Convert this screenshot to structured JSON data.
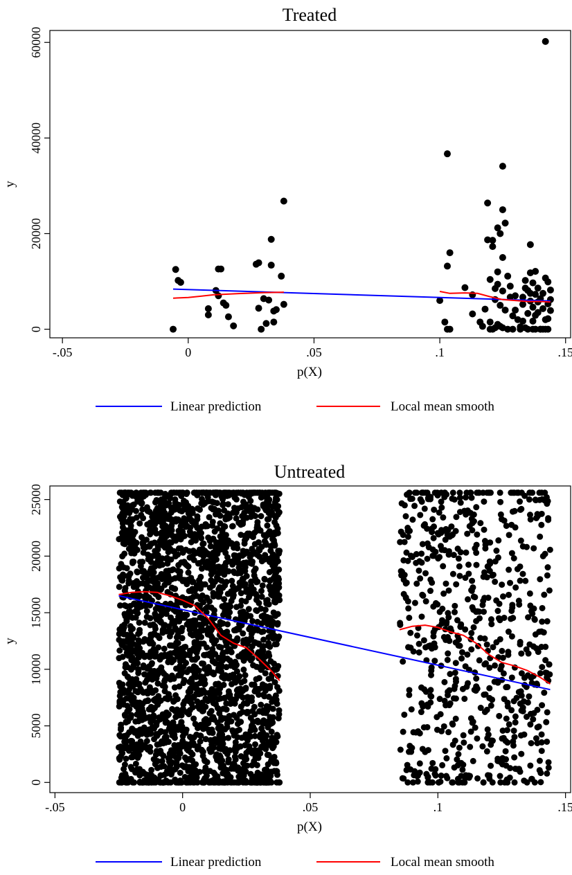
{
  "chart_data": [
    {
      "type": "scatter",
      "title": "Treated",
      "xlabel": "p(X)",
      "ylabel": "y",
      "xlim": [
        -0.055,
        0.152
      ],
      "ylim": [
        -1800,
        62500
      ],
      "xticks": [
        -0.05,
        0,
        0.05,
        0.1,
        0.15
      ],
      "xtick_labels": [
        "-.05",
        "0",
        ".05",
        ".1",
        ".15"
      ],
      "yticks": [
        0,
        20000,
        40000,
        60000
      ],
      "ytick_labels": [
        "0",
        "20000",
        "40000",
        "60000"
      ],
      "grid": false,
      "legend": {
        "position": "bottom",
        "entries": [
          "Linear prediction",
          "Local mean smooth"
        ]
      },
      "colors": {
        "points": "#000000",
        "linear": "#0000ff",
        "smooth": "#ff0000"
      },
      "series": [
        {
          "kind": "points",
          "x": [
            -0.006,
            -0.005,
            -0.004,
            -0.003,
            0.008,
            0.008,
            0.011,
            0.012,
            0.012,
            0.013,
            0.014,
            0.015,
            0.016,
            0.018,
            0.027,
            0.028,
            0.028,
            0.029,
            0.03,
            0.031,
            0.032,
            0.033,
            0.033,
            0.034,
            0.034,
            0.035,
            0.037,
            0.038,
            0.038,
            0.1,
            0.102,
            0.103,
            0.103,
            0.103,
            0.104,
            0.104,
            0.11,
            0.113,
            0.113,
            0.116,
            0.117,
            0.118,
            0.119,
            0.119,
            0.12,
            0.12,
            0.12,
            0.121,
            0.121,
            0.121,
            0.122,
            0.122,
            0.122,
            0.123,
            0.123,
            0.123,
            0.123,
            0.124,
            0.124,
            0.124,
            0.125,
            0.125,
            0.125,
            0.125,
            0.125,
            0.126,
            0.126,
            0.127,
            0.127,
            0.128,
            0.128,
            0.129,
            0.129,
            0.13,
            0.13,
            0.131,
            0.132,
            0.132,
            0.133,
            0.133,
            0.133,
            0.134,
            0.134,
            0.134,
            0.135,
            0.135,
            0.135,
            0.136,
            0.136,
            0.136,
            0.136,
            0.137,
            0.137,
            0.137,
            0.137,
            0.138,
            0.138,
            0.138,
            0.138,
            0.139,
            0.139,
            0.139,
            0.14,
            0.14,
            0.14,
            0.141,
            0.141,
            0.141,
            0.142,
            0.142,
            0.142,
            0.142,
            0.143,
            0.143,
            0.143,
            0.143,
            0.144,
            0.144,
            0.144
          ],
          "y": [
            0,
            12500,
            10200,
            9800,
            4300,
            3000,
            8100,
            12600,
            7000,
            12600,
            5500,
            5000,
            2600,
            700,
            13600,
            13900,
            4400,
            0,
            6400,
            1200,
            6100,
            18800,
            13400,
            3800,
            1500,
            4100,
            11100,
            26800,
            5200,
            6000,
            1500,
            13200,
            36700,
            0,
            16000,
            0,
            8700,
            7200,
            3200,
            1500,
            600,
            4200,
            18700,
            26400,
            10400,
            1500,
            0,
            17300,
            18600,
            0,
            8500,
            6200,
            300,
            9400,
            12000,
            21200,
            1000,
            600,
            20000,
            5000,
            34100,
            25000,
            15000,
            8000,
            300,
            22200,
            4000,
            11100,
            0,
            9000,
            6700,
            2800,
            0,
            4000,
            7000,
            2000,
            500,
            0,
            5200,
            1700,
            6700,
            10200,
            8600,
            300,
            8100,
            3300,
            0,
            17700,
            11800,
            7500,
            5900,
            4600,
            0,
            9700,
            1700,
            12100,
            7300,
            2900,
            0,
            5700,
            3500,
            8600,
            6400,
            0,
            0,
            7500,
            4300,
            0,
            10700,
            2000,
            0,
            60200,
            9900,
            5300,
            2200,
            0,
            8200,
            3900,
            6200
          ]
        },
        {
          "kind": "line",
          "name": "Linear prediction",
          "x": [
            -0.006,
            0.144
          ],
          "y": [
            8400,
            5900
          ]
        },
        {
          "kind": "line",
          "name": "Local mean smooth",
          "x": [
            -0.006,
            0.0,
            0.005,
            0.01,
            0.02,
            0.03,
            0.038
          ],
          "y": [
            6500,
            6650,
            6900,
            7200,
            7450,
            7650,
            7750
          ]
        },
        {
          "kind": "line",
          "name": "Local mean smooth",
          "x": [
            0.1,
            0.104,
            0.11,
            0.115,
            0.12,
            0.125,
            0.13,
            0.135,
            0.14,
            0.144
          ],
          "y": [
            7900,
            7500,
            7600,
            7500,
            6800,
            6200,
            6000,
            5800,
            5800,
            5700
          ]
        }
      ]
    },
    {
      "type": "scatter",
      "title": "Untreated",
      "xlabel": "p(X)",
      "ylabel": "y",
      "xlim": [
        -0.052,
        0.152
      ],
      "ylim": [
        -900,
        26200
      ],
      "xticks": [
        -0.05,
        0,
        0.05,
        0.1,
        0.15
      ],
      "xtick_labels": [
        "-.05",
        "0",
        ".05",
        ".1",
        ".15"
      ],
      "yticks": [
        0,
        5000,
        10000,
        15000,
        20000,
        25000
      ],
      "ytick_labels": [
        "0",
        "5000",
        "10000",
        "15000",
        "20000",
        "25000"
      ],
      "grid": false,
      "legend": {
        "position": "bottom",
        "entries": [
          "Linear prediction",
          "Local mean smooth"
        ]
      },
      "colors": {
        "points": "#000000",
        "linear": "#0000ff",
        "smooth": "#ff0000"
      },
      "point_clusters": [
        {
          "x_range": [
            -0.025,
            0.038
          ],
          "y_range": [
            0,
            25600
          ],
          "density": "very dense"
        },
        {
          "x_range": [
            0.085,
            0.144
          ],
          "y_range": [
            0,
            25600
          ],
          "density": "moderate"
        }
      ],
      "series": [
        {
          "kind": "line",
          "name": "Linear prediction",
          "x": [
            -0.025,
            0.144
          ],
          "y": [
            16500,
            8200
          ]
        },
        {
          "kind": "line",
          "name": "Local mean smooth",
          "x": [
            -0.025,
            -0.02,
            -0.015,
            -0.01,
            -0.005,
            0.0,
            0.005,
            0.01,
            0.015,
            0.02,
            0.025,
            0.03,
            0.035,
            0.038
          ],
          "y": [
            16600,
            16800,
            16850,
            16800,
            16500,
            16100,
            15600,
            14500,
            13000,
            12300,
            11900,
            10900,
            9800,
            9000
          ]
        },
        {
          "kind": "line",
          "name": "Local mean smooth",
          "x": [
            0.085,
            0.09,
            0.095,
            0.1,
            0.105,
            0.11,
            0.115,
            0.12,
            0.125,
            0.13,
            0.135,
            0.14,
            0.144
          ],
          "y": [
            13500,
            13800,
            13900,
            13700,
            13300,
            13000,
            12300,
            11300,
            10600,
            10300,
            9900,
            9300,
            8700
          ]
        }
      ]
    }
  ]
}
